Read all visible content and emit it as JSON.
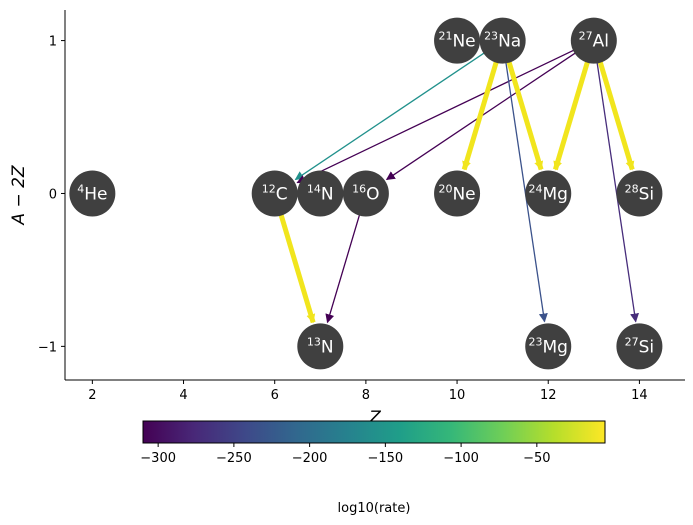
{
  "chart_data": {
    "type": "network",
    "xlabel": "Z",
    "ylabel": "A − 2Z",
    "xlim": [
      1.4,
      15.0
    ],
    "ylim": [
      -1.22,
      1.2
    ],
    "xticks": [
      2,
      4,
      6,
      8,
      10,
      12,
      14
    ],
    "yticks": [
      -1,
      0,
      1
    ],
    "ytick_labels": [
      "−1",
      "0",
      "1"
    ],
    "node_color": "#404040",
    "nuclei": [
      {
        "mass": "4",
        "element": "He",
        "Z": 2,
        "N_minus_Z": 0
      },
      {
        "mass": "12",
        "element": "C",
        "Z": 6,
        "N_minus_Z": 0
      },
      {
        "mass": "14",
        "element": "N",
        "Z": 7,
        "N_minus_Z": 0
      },
      {
        "mass": "16",
        "element": "O",
        "Z": 8,
        "N_minus_Z": 0
      },
      {
        "mass": "20",
        "element": "Ne",
        "Z": 10,
        "N_minus_Z": 0
      },
      {
        "mass": "24",
        "element": "Mg",
        "Z": 12,
        "N_minus_Z": 0
      },
      {
        "mass": "28",
        "element": "Si",
        "Z": 14,
        "N_minus_Z": 0
      },
      {
        "mass": "21",
        "element": "Ne",
        "Z": 10,
        "N_minus_Z": 1
      },
      {
        "mass": "23",
        "element": "Na",
        "Z": 11,
        "N_minus_Z": 1
      },
      {
        "mass": "27",
        "element": "Al",
        "Z": 13,
        "N_minus_Z": 1
      },
      {
        "mass": "13",
        "element": "N",
        "Z": 7,
        "N_minus_Z": -1
      },
      {
        "mass": "23",
        "element": "Mg",
        "Z": 12,
        "N_minus_Z": -1
      },
      {
        "mass": "27",
        "element": "Si",
        "Z": 14,
        "N_minus_Z": -1
      }
    ],
    "links": [
      {
        "from": "23Na",
        "to": "12C",
        "log10_rate": -160,
        "color": "#21918c"
      },
      {
        "from": "27Al",
        "to": "12C",
        "log10_rate": -300,
        "color": "#440154"
      },
      {
        "from": "27Al",
        "to": "16O",
        "log10_rate": -300,
        "color": "#440154"
      },
      {
        "from": "23Na",
        "to": "20Ne",
        "log10_rate": -5,
        "color": "#f1e51d"
      },
      {
        "from": "23Na",
        "to": "24Mg",
        "log10_rate": -5,
        "color": "#f1e51d"
      },
      {
        "from": "27Al",
        "to": "24Mg",
        "log10_rate": -5,
        "color": "#f1e51d"
      },
      {
        "from": "27Al",
        "to": "28Si",
        "log10_rate": -5,
        "color": "#f1e51d"
      },
      {
        "from": "23Na",
        "to": "23Mg",
        "log10_rate": -220,
        "color": "#3b528b"
      },
      {
        "from": "27Al",
        "to": "27Si",
        "log10_rate": -280,
        "color": "#472d7b"
      },
      {
        "from": "12C",
        "to": "13N",
        "log10_rate": -5,
        "color": "#f1e51d"
      },
      {
        "from": "16O",
        "to": "13N",
        "log10_rate": -300,
        "color": "#440154"
      }
    ],
    "colorbar": {
      "label": "log10(rate)",
      "min": -310,
      "max": -5,
      "ticks": [
        -300,
        -250,
        -200,
        -150,
        -100,
        -50
      ],
      "tick_labels": [
        "−300",
        "−250",
        "−200",
        "−150",
        "−100",
        "−50"
      ],
      "colormap": "viridis"
    }
  }
}
